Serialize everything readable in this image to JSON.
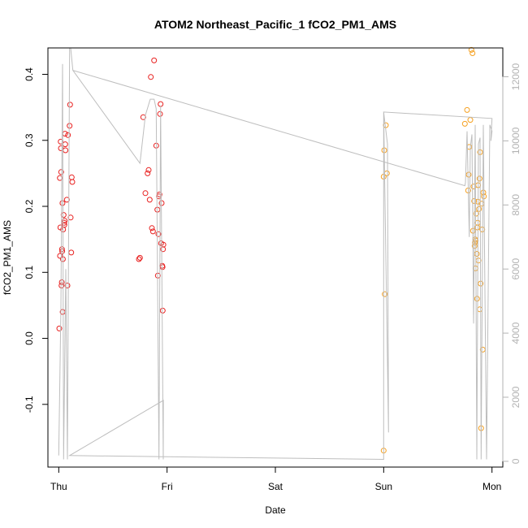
{
  "chart_data": {
    "type": "scatter",
    "title": "ATOM2 Northeast_Pacific_1 fCO2_PM1_AMS",
    "xlabel": "Date",
    "ylabel": "fCO2_PM1_AMS",
    "x_unit": "days",
    "x_ticks": [
      {
        "value": 0,
        "label": "Thu"
      },
      {
        "value": 1,
        "label": "Fri"
      },
      {
        "value": 2,
        "label": "Sat"
      },
      {
        "value": 3,
        "label": "Sun"
      },
      {
        "value": 4,
        "label": "Mon"
      }
    ],
    "xlim": [
      -0.1,
      4.1
    ],
    "ylim": [
      -0.195,
      0.44
    ],
    "y_ticks": [
      -0.1,
      0.0,
      0.1,
      0.2,
      0.3,
      0.4
    ],
    "y2lim": [
      -180,
      12900
    ],
    "y2_ticks": [
      0,
      2000,
      4000,
      6000,
      8000,
      10000,
      12000
    ],
    "grid": false,
    "colors": {
      "early": "#e8201f",
      "late": "#f5a020",
      "altitude_line": "#bebebe",
      "axis": "#000000",
      "right_axis": "#b3b3b3"
    },
    "series": [
      {
        "role": "points",
        "axis": "left",
        "color": "#e8201f",
        "points": [
          [
            0.005,
            0.015
          ],
          [
            0.01,
            0.243
          ],
          [
            0.012,
            0.125
          ],
          [
            0.015,
            0.168
          ],
          [
            0.018,
            0.298
          ],
          [
            0.02,
            0.288
          ],
          [
            0.022,
            0.252
          ],
          [
            0.025,
            0.08
          ],
          [
            0.028,
            0.085
          ],
          [
            0.03,
            0.135
          ],
          [
            0.032,
            0.132
          ],
          [
            0.034,
            0.205
          ],
          [
            0.036,
            0.04
          ],
          [
            0.038,
            0.12
          ],
          [
            0.04,
            0.165
          ],
          [
            0.045,
            0.187
          ],
          [
            0.05,
            0.175
          ],
          [
            0.052,
            0.172
          ],
          [
            0.055,
            0.178
          ],
          [
            0.058,
            0.31
          ],
          [
            0.06,
            0.294
          ],
          [
            0.062,
            0.285
          ],
          [
            0.075,
            0.21
          ],
          [
            0.08,
            0.08
          ],
          [
            0.085,
            0.308
          ],
          [
            0.1,
            0.322
          ],
          [
            0.105,
            0.354
          ],
          [
            0.11,
            0.183
          ],
          [
            0.115,
            0.13
          ],
          [
            0.12,
            0.244
          ],
          [
            0.125,
            0.237
          ],
          [
            0.74,
            0.12
          ],
          [
            0.75,
            0.122
          ],
          [
            0.78,
            0.335
          ],
          [
            0.8,
            0.22
          ],
          [
            0.82,
            0.25
          ],
          [
            0.83,
            0.255
          ],
          [
            0.84,
            0.21
          ],
          [
            0.85,
            0.396
          ],
          [
            0.86,
            0.167
          ],
          [
            0.87,
            0.162
          ],
          [
            0.88,
            0.421
          ],
          [
            0.9,
            0.292
          ],
          [
            0.91,
            0.195
          ],
          [
            0.915,
            0.095
          ],
          [
            0.92,
            0.158
          ],
          [
            0.925,
            0.215
          ],
          [
            0.93,
            0.218
          ],
          [
            0.935,
            0.34
          ],
          [
            0.94,
            0.355
          ],
          [
            0.945,
            0.144
          ],
          [
            0.95,
            0.205
          ],
          [
            0.955,
            0.11
          ],
          [
            0.958,
            0.108
          ],
          [
            0.96,
            0.042
          ],
          [
            0.963,
            0.135
          ],
          [
            0.966,
            0.142
          ]
        ]
      },
      {
        "role": "points",
        "axis": "left",
        "color": "#f5a020",
        "points": [
          [
            3.0,
            0.245
          ],
          [
            3.005,
            0.285
          ],
          [
            3.01,
            0.067
          ],
          [
            3.02,
            0.323
          ],
          [
            3.03,
            0.25
          ],
          [
            3.0,
            -0.17
          ],
          [
            3.75,
            0.325
          ],
          [
            3.77,
            0.346
          ],
          [
            3.78,
            0.224
          ],
          [
            3.785,
            0.248
          ],
          [
            3.79,
            0.29
          ],
          [
            3.8,
            0.331
          ],
          [
            3.81,
            0.437
          ],
          [
            3.82,
            0.432
          ],
          [
            3.825,
            0.163
          ],
          [
            3.83,
            0.23
          ],
          [
            3.835,
            0.208
          ],
          [
            3.84,
            0.14
          ],
          [
            3.842,
            0.145
          ],
          [
            3.845,
            0.15
          ],
          [
            3.848,
            0.106
          ],
          [
            3.85,
            0.148
          ],
          [
            3.855,
            0.189
          ],
          [
            3.86,
            0.128
          ],
          [
            3.862,
            0.06
          ],
          [
            3.865,
            0.168
          ],
          [
            3.868,
            0.175
          ],
          [
            3.87,
            0.207
          ],
          [
            3.872,
            0.232
          ],
          [
            3.875,
            0.118
          ],
          [
            3.88,
            0.196
          ],
          [
            3.885,
            0.242
          ],
          [
            3.888,
            0.044
          ],
          [
            3.89,
            0.282
          ],
          [
            3.895,
            0.083
          ],
          [
            3.9,
            -0.136
          ],
          [
            3.905,
            0.204
          ],
          [
            3.91,
            0.165
          ],
          [
            3.915,
            -0.017
          ],
          [
            3.92,
            0.221
          ],
          [
            3.925,
            0.215
          ]
        ]
      },
      {
        "role": "altitude_line",
        "axis": "right",
        "color": "#bebebe",
        "points": [
          [
            0.0,
            180
          ],
          [
            0.02,
            4800
          ],
          [
            0.035,
            12400
          ],
          [
            0.045,
            60
          ],
          [
            0.065,
            6000
          ],
          [
            0.08,
            60
          ],
          [
            0.1,
            12900
          ],
          [
            0.11,
            12900
          ],
          [
            0.13,
            12200
          ],
          [
            0.75,
            9300
          ],
          [
            0.8,
            10800
          ],
          [
            0.845,
            11300
          ],
          [
            0.88,
            11300
          ],
          [
            0.9,
            11000
          ],
          [
            0.925,
            60
          ],
          [
            0.94,
            11100
          ],
          [
            0.965,
            60
          ],
          [
            0.966,
            1900
          ],
          [
            0.1,
            180
          ],
          [
            3.0,
            60
          ],
          [
            3.0,
            10900
          ],
          [
            3.045,
            900
          ],
          [
            3.035,
            9900
          ],
          [
            3.0,
            10900
          ],
          [
            4.0,
            10700
          ],
          [
            3.99,
            10000
          ],
          [
            4.0,
            10300
          ],
          [
            3.98,
            10500
          ],
          [
            3.95,
            60
          ],
          [
            3.92,
            10500
          ],
          [
            3.9,
            60
          ],
          [
            3.89,
            10100
          ],
          [
            3.875,
            9900
          ],
          [
            3.86,
            60
          ],
          [
            3.845,
            10500
          ],
          [
            3.83,
            4300
          ],
          [
            3.815,
            10200
          ],
          [
            3.8,
            9800
          ],
          [
            3.79,
            7000
          ],
          [
            3.77,
            10300
          ],
          [
            3.755,
            8700
          ],
          [
            3.75,
            8600
          ],
          [
            0.13,
            12200
          ]
        ]
      }
    ]
  }
}
